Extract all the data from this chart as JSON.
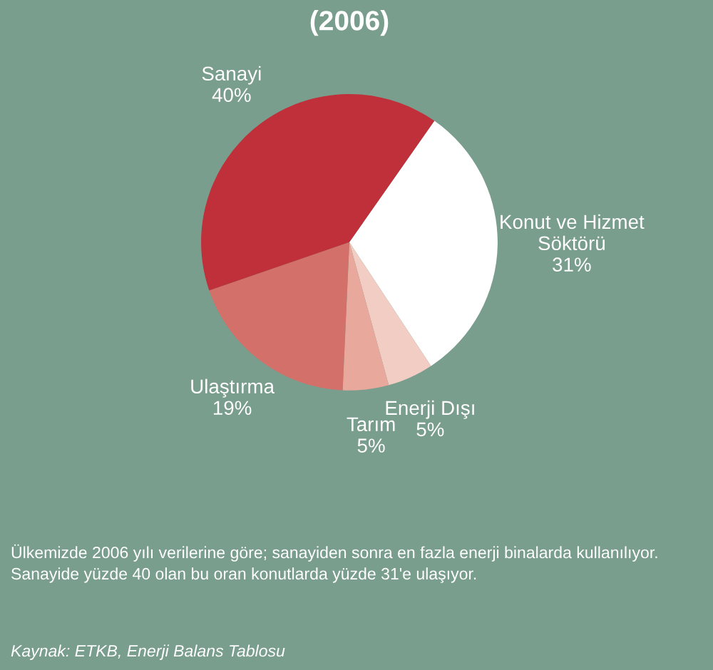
{
  "chart_data": {
    "type": "pie",
    "title": "(2006)",
    "categories": [
      "Konut ve Hizmet\nSöktörü",
      "Enerji Dışı",
      "Tarım",
      "Ulaştırma",
      "Sanayi"
    ],
    "values": [
      31,
      5,
      5,
      19,
      40
    ],
    "value_labels": [
      "31%",
      "5%",
      "5%",
      "19%",
      "40%"
    ],
    "colors": [
      "#ffffff",
      "#f2cdc4",
      "#e8a89c",
      "#d4706a",
      "#c0303a"
    ],
    "legend": false,
    "annotations": [
      "Ülkemizde 2006 yılı verilerine göre; sanayiden sonra en fazla enerji binalarda kullanılıyor.\nSanayide yüzde 40 olan bu oran konutlarda yüzde 31'e ulaşıyor.",
      "Kaynak: ETKB, Enerji Balans Tablosu"
    ]
  }
}
